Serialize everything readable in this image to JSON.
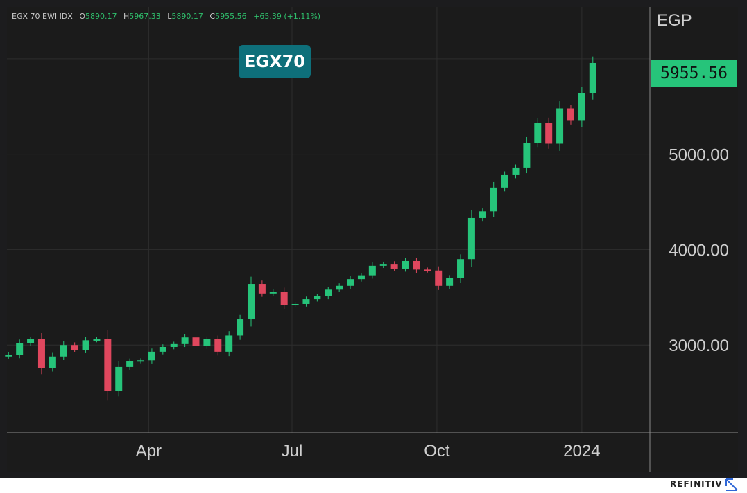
{
  "legend": {
    "symbol": "EGX 70 EWI IDX",
    "open_label": "O",
    "open": "5890.17",
    "high_label": "H",
    "high": "5967.33",
    "low_label": "L",
    "low": "5890.17",
    "close_label": "C",
    "close": "5955.56",
    "change": "+65.39",
    "change_pct": "(+1.11%)"
  },
  "ticker_badge": "EGX70",
  "unit": "EGP",
  "last_price": "5955.56",
  "footer": {
    "brand": "REFINITIV",
    "brand_icon": "refinitiv-arrow-icon"
  },
  "colors": {
    "up": "#26c47a",
    "down": "#e0475e",
    "badge": "#0e6f7a",
    "background": "#1b1b1b"
  },
  "chart_data": {
    "type": "candlestick",
    "title": "",
    "ylabel": "EGP",
    "xlabel": "",
    "ylim": [
      2080,
      5890
    ],
    "y_ticks": [
      "3000.00",
      "4000.00",
      "5000.00"
    ],
    "y_tick_values": [
      3000,
      4000,
      5000
    ],
    "x_ticks": [
      "Apr",
      "Jul",
      "Oct",
      "2024"
    ],
    "x_tick_dates": [
      "2023-04-01",
      "2023-07-01",
      "2023-10-01",
      "2024-01-01"
    ],
    "x_range": [
      "2023-01-01",
      "2024-01-31"
    ],
    "grid": true,
    "series": [
      {
        "dates": [
          "2023-01-02",
          "2023-01-09",
          "2023-01-16",
          "2023-01-23",
          "2023-01-30",
          "2023-02-06",
          "2023-02-13",
          "2023-02-20",
          "2023-02-27",
          "2023-03-06",
          "2023-03-13",
          "2023-03-20",
          "2023-03-27",
          "2023-04-03",
          "2023-04-10",
          "2023-04-17",
          "2023-04-24",
          "2023-05-01",
          "2023-05-08",
          "2023-05-15",
          "2023-05-22",
          "2023-05-29",
          "2023-06-05",
          "2023-06-12",
          "2023-06-19",
          "2023-06-26",
          "2023-07-03",
          "2023-07-10",
          "2023-07-17",
          "2023-07-24",
          "2023-07-31",
          "2023-08-07",
          "2023-08-14",
          "2023-08-21",
          "2023-08-28",
          "2023-09-04",
          "2023-09-11",
          "2023-09-18",
          "2023-09-25",
          "2023-10-02",
          "2023-10-09",
          "2023-10-16",
          "2023-10-23",
          "2023-10-30",
          "2023-11-06",
          "2023-11-13",
          "2023-11-20",
          "2023-11-27",
          "2023-12-04",
          "2023-12-11",
          "2023-12-18",
          "2023-12-25",
          "2024-01-01",
          "2024-01-08"
        ],
        "close": [
          2900,
          3020,
          3060,
          2760,
          2880,
          3000,
          2950,
          3050,
          3060,
          2520,
          2770,
          2830,
          2840,
          2930,
          2980,
          3010,
          3080,
          2990,
          3060,
          2930,
          3100,
          3270,
          3640,
          3540,
          3560,
          3420,
          3430,
          3480,
          3510,
          3580,
          3620,
          3690,
          3730,
          3830,
          3850,
          3800,
          3880,
          3790,
          3780,
          3620,
          3700,
          3900,
          4330,
          4400,
          4650,
          4780,
          4860,
          5120,
          5330,
          5110,
          5480,
          5350,
          5640,
          5955.56
        ]
      }
    ]
  }
}
